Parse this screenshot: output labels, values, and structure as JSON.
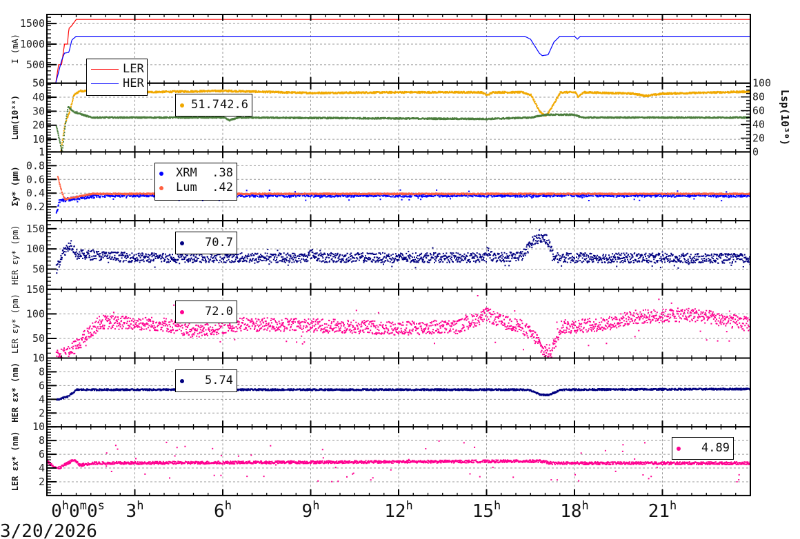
{
  "chart_data": [
    {
      "type": "line",
      "id": "current",
      "ylabel": "I (mA)",
      "ylim": [
        50,
        1720
      ],
      "yticks": [
        50,
        500,
        1000,
        1500
      ],
      "series": [
        {
          "name": "LER",
          "color": "#ff0000",
          "style": "line",
          "points": [
            [
              0.3,
              50
            ],
            [
              0.4,
              500
            ],
            [
              0.5,
              500
            ],
            [
              0.6,
              1000
            ],
            [
              0.7,
              1000
            ],
            [
              0.75,
              1380
            ],
            [
              0.85,
              1450
            ],
            [
              0.9,
              1500
            ],
            [
              1.0,
              1600
            ],
            [
              24,
              1600
            ]
          ]
        },
        {
          "name": "HER",
          "color": "#0000ff",
          "style": "line",
          "points": [
            [
              0.3,
              50
            ],
            [
              0.5,
              600
            ],
            [
              0.6,
              780
            ],
            [
              0.75,
              800
            ],
            [
              0.85,
              1100
            ],
            [
              1.0,
              1190
            ],
            [
              16.3,
              1190
            ],
            [
              16.5,
              1120
            ],
            [
              16.8,
              780
            ],
            [
              16.9,
              720
            ],
            [
              17.1,
              740
            ],
            [
              17.3,
              1050
            ],
            [
              17.5,
              1190
            ],
            [
              18.0,
              1190
            ],
            [
              18.1,
              1120
            ],
            [
              18.2,
              1190
            ],
            [
              24,
              1190
            ]
          ]
        }
      ],
      "legend": {
        "entries": [
          "LER",
          "HER"
        ]
      }
    },
    {
      "type": "scatter",
      "id": "luminosity",
      "ylabel": "Lum(10³³)",
      "ylabel_right": "Lsp(10³⁰)",
      "ylim": [
        1,
        50
      ],
      "yticks": [
        1,
        10,
        20,
        30,
        40,
        50
      ],
      "ylim_right": [
        0,
        100
      ],
      "yticks_right": [
        0,
        20,
        40,
        60,
        80,
        100
      ],
      "series": [
        {
          "name": "Lum",
          "color": "#f0a800",
          "style": "dots",
          "spread": 0.6,
          "points": [
            [
              0.45,
              1
            ],
            [
              0.6,
              22
            ],
            [
              0.75,
              30
            ],
            [
              0.9,
              42
            ],
            [
              1.1,
              45
            ],
            [
              3,
              44
            ],
            [
              6,
              45
            ],
            [
              9,
              43.5
            ],
            [
              12,
              44
            ],
            [
              14.8,
              44
            ],
            [
              15.0,
              42
            ],
            [
              15.2,
              44
            ],
            [
              16.2,
              44
            ],
            [
              16.5,
              42
            ],
            [
              16.8,
              30
            ],
            [
              17.0,
              27
            ],
            [
              17.2,
              33
            ],
            [
              17.5,
              44
            ],
            [
              18,
              44
            ],
            [
              18.1,
              41
            ],
            [
              18.3,
              44
            ],
            [
              20,
              43
            ],
            [
              20.4,
              41.5
            ],
            [
              21,
              43
            ],
            [
              24,
              44.5
            ]
          ]
        },
        {
          "name": "Lsp",
          "color": "#4a7d3c",
          "style": "dots",
          "spread": 0.5,
          "points": [
            [
              0.3,
              20
            ],
            [
              0.5,
              1
            ],
            [
              0.6,
              20
            ],
            [
              0.7,
              34
            ],
            [
              0.9,
              30
            ],
            [
              1.5,
              26
            ],
            [
              6,
              26
            ],
            [
              6.2,
              24
            ],
            [
              6.5,
              26
            ],
            [
              15,
              25
            ],
            [
              16.5,
              26
            ],
            [
              17,
              28
            ],
            [
              18,
              28
            ],
            [
              18.2,
              26
            ],
            [
              24,
              26
            ]
          ]
        }
      ],
      "legend": {
        "values": [
          "51.7",
          "42.6"
        ]
      }
    },
    {
      "type": "scatter",
      "id": "sigma-y",
      "ylabel": "Σy* (μm)",
      "ylim": [
        0,
        1.0
      ],
      "yticks": [
        0.2,
        0.4,
        0.6,
        0.8
      ],
      "series": [
        {
          "name": "XRM",
          "color": "#0000ff",
          "style": "dots",
          "spread": 0.025,
          "outliers": 0.08,
          "points": [
            [
              0.3,
              0.1
            ],
            [
              0.4,
              0.3
            ],
            [
              1.0,
              0.34
            ],
            [
              2.0,
              0.38
            ],
            [
              24,
              0.38
            ]
          ]
        },
        {
          "name": "Lum",
          "color": "#ff6040",
          "style": "dots",
          "spread": 0.01,
          "points": [
            [
              0.35,
              0.65
            ],
            [
              0.5,
              0.4
            ],
            [
              0.6,
              0.32
            ],
            [
              1.5,
              0.4
            ],
            [
              24,
              0.4
            ]
          ]
        }
      ],
      "legend": {
        "entries": [
          {
            "name": "XRM",
            "value": ".38"
          },
          {
            "name": "Lum",
            "value": ".42"
          }
        ]
      }
    },
    {
      "type": "scatter",
      "id": "her-emit-y",
      "ylabel": "HER εy* (pm)",
      "ylim": [
        0,
        170
      ],
      "yticks": [
        50,
        100,
        150
      ],
      "series": [
        {
          "name": "HER εy*",
          "color": "#000080",
          "style": "dots",
          "spread": 12,
          "outliers": 25,
          "points": [
            [
              0.3,
              50
            ],
            [
              0.5,
              90
            ],
            [
              0.8,
              115
            ],
            [
              1.0,
              88
            ],
            [
              3,
              80
            ],
            [
              8.8,
              80
            ],
            [
              9.0,
              90
            ],
            [
              9.3,
              80
            ],
            [
              15,
              80
            ],
            [
              15.0,
              95
            ],
            [
              15.2,
              80
            ],
            [
              16.2,
              85
            ],
            [
              16.6,
              125
            ],
            [
              17.0,
              130
            ],
            [
              17.3,
              80
            ],
            [
              24,
              78
            ]
          ]
        }
      ],
      "legend": {
        "value": "70.7"
      }
    },
    {
      "type": "scatter",
      "id": "ler-emit-y",
      "ylabel": "LER εy* (pm)",
      "ylim": [
        10,
        150
      ],
      "yticks": [
        10,
        50,
        100,
        150
      ],
      "series": [
        {
          "name": "LER εy*",
          "color": "#ff0090",
          "style": "dots",
          "spread": 14,
          "outliers": 50,
          "points": [
            [
              0.3,
              20
            ],
            [
              0.7,
              20
            ],
            [
              1.2,
              50
            ],
            [
              1.8,
              85
            ],
            [
              4,
              80
            ],
            [
              5,
              65
            ],
            [
              6.5,
              80
            ],
            [
              9,
              78
            ],
            [
              12,
              72
            ],
            [
              14,
              75
            ],
            [
              15,
              100
            ],
            [
              15.5,
              85
            ],
            [
              16.2,
              75
            ],
            [
              16.7,
              50
            ],
            [
              16.9,
              25
            ],
            [
              17.2,
              25
            ],
            [
              17.5,
              75
            ],
            [
              19,
              80
            ],
            [
              20,
              95
            ],
            [
              22,
              100
            ],
            [
              24,
              80
            ]
          ]
        }
      ],
      "legend": {
        "value": "72.0"
      }
    },
    {
      "type": "scatter",
      "id": "her-emit-x",
      "ylabel": "HER εx* (nm)",
      "ylim": [
        0,
        10
      ],
      "yticks": [
        2,
        4,
        6,
        8
      ],
      "series": [
        {
          "name": "HER εx*",
          "color": "#000080",
          "style": "dots",
          "spread": 0.12,
          "points": [
            [
              0.3,
              4.0
            ],
            [
              0.7,
              4.5
            ],
            [
              1.0,
              5.5
            ],
            [
              16.4,
              5.5
            ],
            [
              16.8,
              4.8
            ],
            [
              17.1,
              4.7
            ],
            [
              17.5,
              5.5
            ],
            [
              24,
              5.6
            ]
          ]
        }
      ],
      "legend": {
        "value": "5.74"
      }
    },
    {
      "type": "scatter",
      "id": "ler-emit-x",
      "ylabel": "LER εx* (nm)",
      "ylim": [
        0,
        10
      ],
      "yticks": [
        2,
        4,
        6,
        8,
        10
      ],
      "series": [
        {
          "name": "LER εx*",
          "color": "#ff0090",
          "style": "dots",
          "spread": 0.2,
          "outliers": 3,
          "points": [
            [
              0.0,
              5
            ],
            [
              0.35,
              4
            ],
            [
              0.9,
              5.3
            ],
            [
              1.1,
              4.5
            ],
            [
              1.5,
              4.8
            ],
            [
              16.8,
              5.1
            ],
            [
              17.2,
              4.8
            ],
            [
              24,
              4.8
            ]
          ]
        }
      ],
      "legend": {
        "value": "4.89"
      }
    }
  ],
  "time_axis": {
    "xlim_hours": [
      0,
      24
    ],
    "ticks": [
      {
        "h": 0,
        "base": "0",
        "sup1": "h",
        "mid": "0",
        "sup2": "m",
        "end": "0",
        "sup3": "s"
      },
      {
        "h": 3,
        "base": "3",
        "sup1": "h"
      },
      {
        "h": 6,
        "base": "6",
        "sup1": "h"
      },
      {
        "h": 9,
        "base": "9",
        "sup1": "h"
      },
      {
        "h": 12,
        "base": "12",
        "sup1": "h"
      },
      {
        "h": 15,
        "base": "15",
        "sup1": "h"
      },
      {
        "h": 18,
        "base": "18",
        "sup1": "h"
      },
      {
        "h": 21,
        "base": "21",
        "sup1": "h"
      }
    ],
    "date": "3/20/2026"
  }
}
